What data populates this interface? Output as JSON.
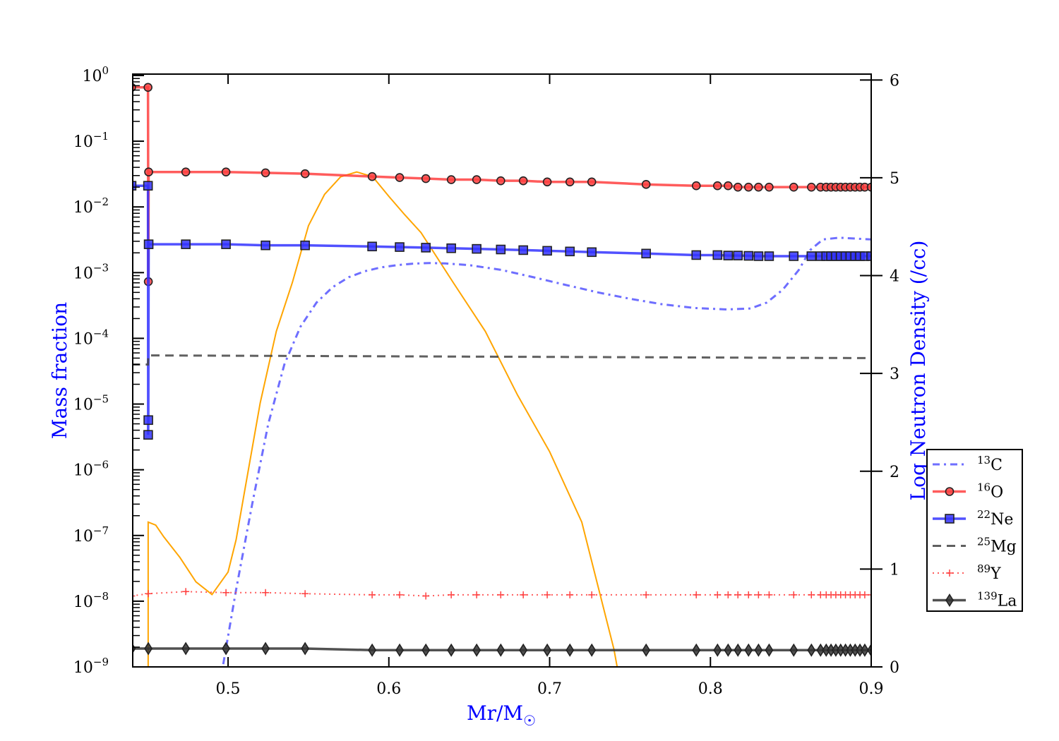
{
  "chart_data": {
    "type": "line",
    "xlabel": "Mr/M",
    "xlabel_symbol": "☉",
    "ylabel": "Mass fraction",
    "ylabel_right": "Log Neutron Density (/cc)",
    "xlim": [
      0.4407,
      0.9
    ],
    "ylim": [
      1e-09,
      1.05
    ],
    "yscale": "log",
    "ylim_right": [
      0,
      6.06
    ],
    "x_ticks": [
      "0.5",
      "0.6",
      "0.7",
      "0.8",
      "0.9"
    ],
    "y_ticks": [
      "0",
      "−1",
      "−2",
      "−3",
      "−4",
      "−5",
      "−6",
      "−7",
      "−8",
      "−9"
    ],
    "y_ticks_right": [
      "0",
      "1",
      "2",
      "3",
      "4",
      "5",
      "6"
    ],
    "grid": false,
    "legend_placement": "outside-right-bottom",
    "colors": {
      "label": "#0000ff",
      "c13": "#5050ff",
      "o16": "#ff4040",
      "ne22": "#4040ff",
      "mg25": "#444444",
      "y89": "#ff4040",
      "la139": "#333333",
      "neutron": "#ffa500"
    },
    "series": [
      {
        "name": "13C",
        "mass": "13",
        "el": "C",
        "style": "dashdot",
        "color": "#5555ff",
        "x": [
          0.497,
          0.505,
          0.515,
          0.525,
          0.535,
          0.545,
          0.555,
          0.565,
          0.575,
          0.585,
          0.595,
          0.605,
          0.615,
          0.625,
          0.635,
          0.65,
          0.67,
          0.69,
          0.71,
          0.73,
          0.75,
          0.77,
          0.79,
          0.81,
          0.825,
          0.835,
          0.845,
          0.855,
          0.862,
          0.87,
          0.88,
          0.89,
          0.9
        ],
        "y": [
          1.1e-09,
          1.5e-08,
          3e-07,
          5e-06,
          4e-05,
          0.00015,
          0.00035,
          0.0006,
          0.00085,
          0.00105,
          0.0012,
          0.0013,
          0.00137,
          0.0014,
          0.00138,
          0.0013,
          0.0011,
          0.00085,
          0.00065,
          0.0005,
          0.0004,
          0.00033,
          0.00029,
          0.000275,
          0.000285,
          0.00035,
          0.00055,
          0.0011,
          0.0022,
          0.0032,
          0.0034,
          0.0033,
          0.0032
        ]
      },
      {
        "name": "16O",
        "mass": "16",
        "el": "O",
        "style": "solid",
        "marker": "circle",
        "color": "#ff4040",
        "x": [
          0.44,
          0.4502,
          0.4504,
          0.4506,
          0.4737,
          0.4987,
          0.5233,
          0.5479,
          0.5896,
          0.6067,
          0.623,
          0.6388,
          0.6546,
          0.6696,
          0.6836,
          0.6985,
          0.7126,
          0.7262,
          0.76,
          0.7912,
          0.8044,
          0.811,
          0.8171,
          0.8237,
          0.8299,
          0.8365,
          0.8518,
          0.8628,
          0.8685,
          0.872,
          0.875,
          0.878,
          0.881,
          0.884,
          0.887,
          0.89,
          0.893,
          0.896,
          0.9
        ],
        "y": [
          0.66,
          0.66,
          0.00073,
          0.034,
          0.034,
          0.034,
          0.033,
          0.032,
          0.029,
          0.028,
          0.027,
          0.026,
          0.026,
          0.025,
          0.025,
          0.024,
          0.024,
          0.024,
          0.022,
          0.021,
          0.021,
          0.021,
          0.02,
          0.02,
          0.02,
          0.02,
          0.02,
          0.02,
          0.02,
          0.02,
          0.02,
          0.02,
          0.02,
          0.02,
          0.02,
          0.02,
          0.02,
          0.02,
          0.02
        ]
      },
      {
        "name": "22Ne",
        "mass": "22",
        "el": "Ne",
        "style": "solid",
        "marker": "square",
        "color": "#3333ff",
        "x": [
          0.44,
          0.4502,
          0.4503,
          0.4504,
          0.4506,
          0.4737,
          0.4987,
          0.5233,
          0.5479,
          0.5896,
          0.6067,
          0.623,
          0.6388,
          0.6546,
          0.6696,
          0.6836,
          0.6985,
          0.7126,
          0.7262,
          0.76,
          0.7912,
          0.8044,
          0.811,
          0.8171,
          0.8237,
          0.8299,
          0.8365,
          0.8518,
          0.8628,
          0.8685,
          0.872,
          0.875,
          0.878,
          0.881,
          0.884,
          0.887,
          0.89,
          0.893,
          0.896,
          0.9
        ],
        "y": [
          0.021,
          0.021,
          3.4e-06,
          5.7e-06,
          0.0027,
          0.0027,
          0.0027,
          0.0026,
          0.0026,
          0.0025,
          0.00245,
          0.0024,
          0.00235,
          0.0023,
          0.00225,
          0.0022,
          0.00215,
          0.0021,
          0.00205,
          0.00195,
          0.00185,
          0.00185,
          0.00182,
          0.00182,
          0.0018,
          0.00178,
          0.00178,
          0.00178,
          0.00178,
          0.00178,
          0.00178,
          0.00178,
          0.00178,
          0.00178,
          0.00178,
          0.00178,
          0.00178,
          0.00178,
          0.00178,
          0.00178
        ]
      },
      {
        "name": "25Mg",
        "mass": "25",
        "el": "Mg",
        "style": "dashed",
        "color": "#444444",
        "x": [
          0.44,
          0.4502,
          0.4504,
          0.9
        ],
        "y": [
          4e-05,
          4e-05,
          5.5e-05,
          5e-05
        ]
      },
      {
        "name": "89Y",
        "mass": "89",
        "el": "Y",
        "style": "dotted",
        "marker": "plus",
        "color": "#ff4040",
        "x": [
          0.44,
          0.4504,
          0.4737,
          0.4987,
          0.5233,
          0.5479,
          0.5896,
          0.6067,
          0.623,
          0.6388,
          0.6546,
          0.6696,
          0.6836,
          0.6985,
          0.7126,
          0.7262,
          0.76,
          0.7912,
          0.8044,
          0.811,
          0.8171,
          0.8237,
          0.8299,
          0.8365,
          0.8518,
          0.8628,
          0.8685,
          0.872,
          0.875,
          0.878,
          0.881,
          0.884,
          0.887,
          0.89,
          0.893,
          0.896,
          0.9
        ],
        "y": [
          1.2e-08,
          1.3e-08,
          1.4e-08,
          1.35e-08,
          1.35e-08,
          1.3e-08,
          1.25e-08,
          1.25e-08,
          1.2e-08,
          1.25e-08,
          1.25e-08,
          1.25e-08,
          1.25e-08,
          1.25e-08,
          1.25e-08,
          1.25e-08,
          1.25e-08,
          1.25e-08,
          1.25e-08,
          1.25e-08,
          1.25e-08,
          1.25e-08,
          1.25e-08,
          1.25e-08,
          1.25e-08,
          1.25e-08,
          1.25e-08,
          1.25e-08,
          1.25e-08,
          1.25e-08,
          1.25e-08,
          1.25e-08,
          1.25e-08,
          1.25e-08,
          1.25e-08,
          1.25e-08,
          1.25e-08
        ]
      },
      {
        "name": "139La",
        "mass": "139",
        "el": "La",
        "style": "solid",
        "marker": "diamond",
        "color": "#333333",
        "x": [
          0.44,
          0.4504,
          0.4737,
          0.4987,
          0.5233,
          0.5479,
          0.5896,
          0.6067,
          0.623,
          0.6388,
          0.6546,
          0.6696,
          0.6836,
          0.6985,
          0.7126,
          0.7262,
          0.76,
          0.7912,
          0.8044,
          0.811,
          0.8171,
          0.8237,
          0.8299,
          0.8365,
          0.8518,
          0.8628,
          0.8685,
          0.872,
          0.875,
          0.878,
          0.881,
          0.884,
          0.887,
          0.89,
          0.893,
          0.896,
          0.9
        ],
        "y": [
          1.9e-09,
          1.9e-09,
          1.9e-09,
          1.9e-09,
          1.9e-09,
          1.9e-09,
          1.8e-09,
          1.8e-09,
          1.8e-09,
          1.8e-09,
          1.8e-09,
          1.8e-09,
          1.8e-09,
          1.8e-09,
          1.8e-09,
          1.8e-09,
          1.8e-09,
          1.8e-09,
          1.8e-09,
          1.8e-09,
          1.8e-09,
          1.8e-09,
          1.8e-09,
          1.8e-09,
          1.8e-09,
          1.8e-09,
          1.8e-09,
          1.8e-09,
          1.8e-09,
          1.8e-09,
          1.8e-09,
          1.8e-09,
          1.8e-09,
          1.8e-09,
          1.8e-09,
          1.8e-09,
          1.8e-09
        ]
      }
    ],
    "neutron_density": {
      "axis": "right",
      "color": "#ffa500",
      "x": [
        0.4503,
        0.4503,
        0.455,
        0.46,
        0.47,
        0.48,
        0.49,
        0.5,
        0.505,
        0.51,
        0.52,
        0.53,
        0.54,
        0.55,
        0.56,
        0.57,
        0.58,
        0.59,
        0.6,
        0.61,
        0.62,
        0.64,
        0.66,
        0.68,
        0.7,
        0.72,
        0.73,
        0.74,
        0.742
      ],
      "y": [
        0,
        1.48,
        1.45,
        1.33,
        1.12,
        0.87,
        0.74,
        0.97,
        1.3,
        1.77,
        2.7,
        3.43,
        3.93,
        4.51,
        4.83,
        5.01,
        5.06,
        5.01,
        4.81,
        4.62,
        4.44,
        3.93,
        3.43,
        2.78,
        2.2,
        1.48,
        0.83,
        0.18,
        0
      ]
    }
  }
}
